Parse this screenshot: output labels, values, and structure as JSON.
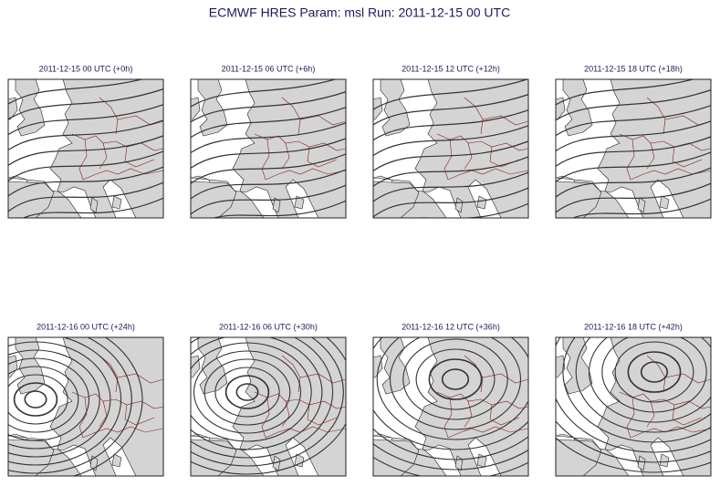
{
  "title": "ECMWF HRES Param: msl Run: 2011-12-15 00 UTC",
  "panels": [
    {
      "title": "2011-12-15 00 UTC (+0h)"
    },
    {
      "title": "2011-12-15 06 UTC (+6h)"
    },
    {
      "title": "2011-12-15 12 UTC (+12h)"
    },
    {
      "title": "2011-12-15 18 UTC (+18h)"
    },
    {
      "title": "2011-12-16 00 UTC (+24h)"
    },
    {
      "title": "2011-12-16 06 UTC (+30h)"
    },
    {
      "title": "2011-12-16 12 UTC (+36h)"
    },
    {
      "title": "2011-12-16 18 UTC (+42h)"
    }
  ]
}
